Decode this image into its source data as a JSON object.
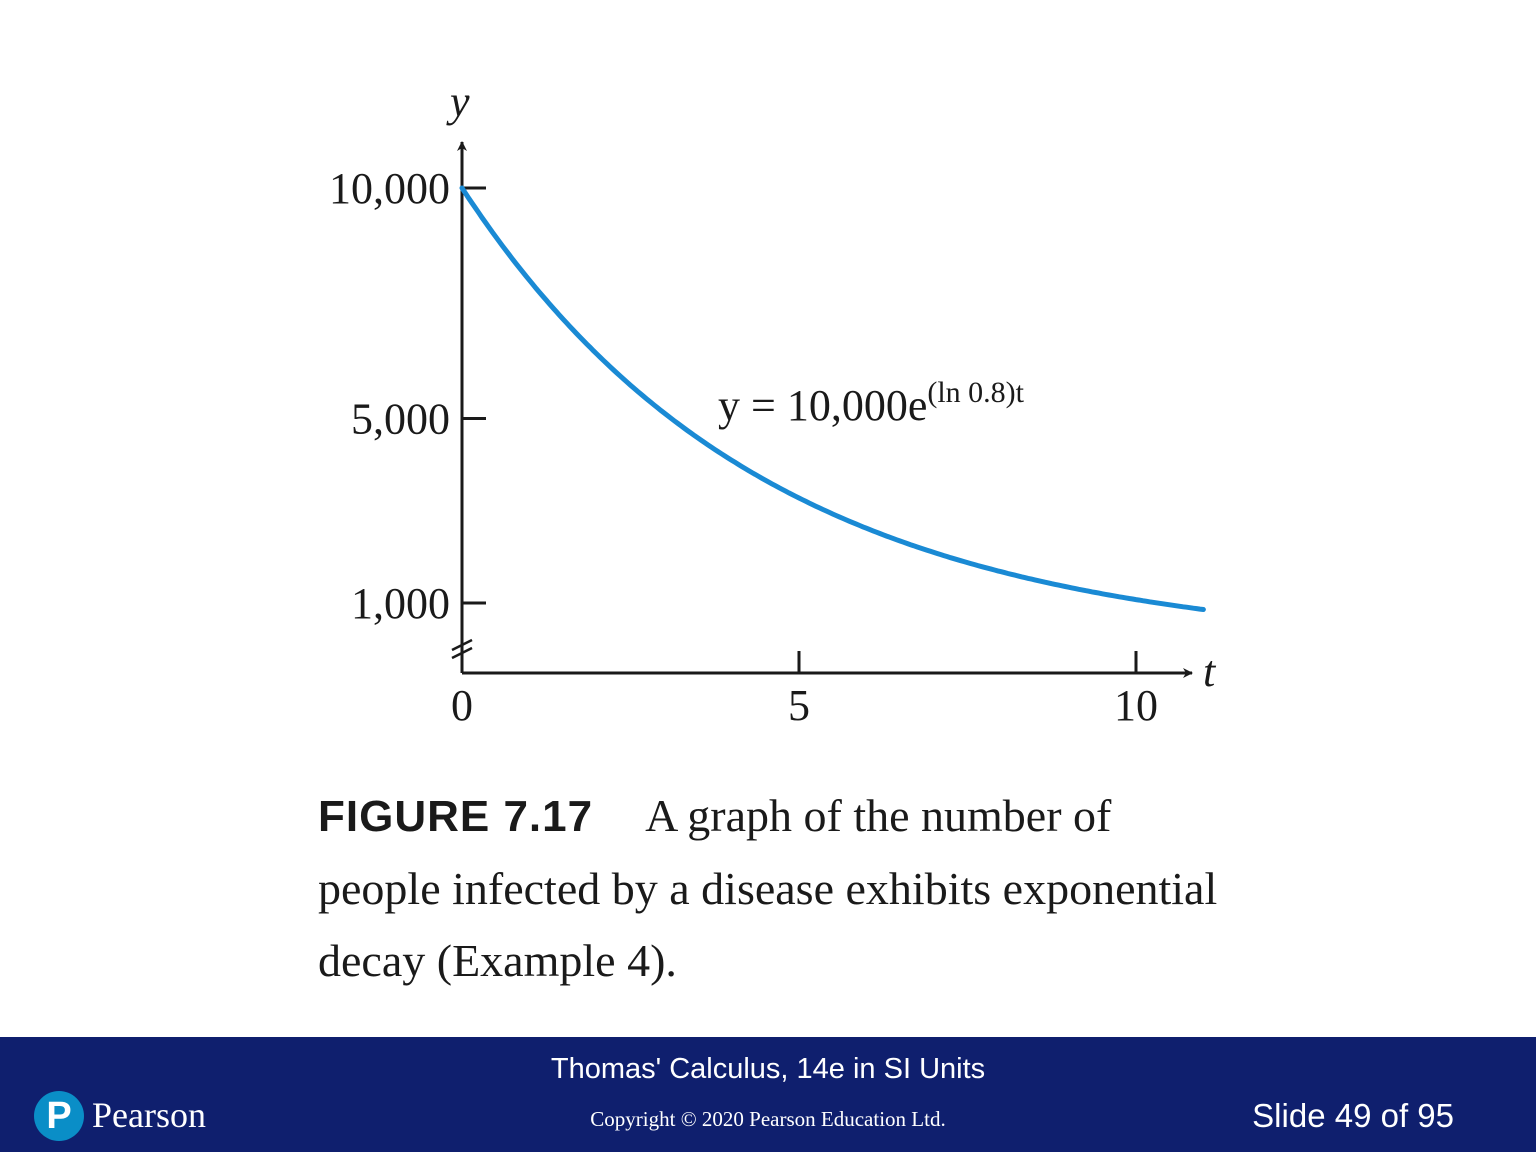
{
  "chart_data": {
    "type": "line",
    "xlabel": "t",
    "ylabel": "y",
    "x_ticks": [
      "0",
      "5",
      "10"
    ],
    "x_tick_values": [
      0,
      5,
      10
    ],
    "y_ticks": [
      "1,000",
      "5,000",
      "10,000"
    ],
    "y_tick_values": [
      1000,
      5000,
      10000
    ],
    "xlim": [
      0,
      11
    ],
    "y_axis_break_below": 1000,
    "equation": {
      "main": "y = 10,000e",
      "superscript": "(ln 0.8)t"
    },
    "series": [
      {
        "color": "#1a8ad4",
        "function": "y = 10000 * exp(ln(0.8) * t)",
        "x": [
          0,
          1,
          2,
          3,
          4,
          5,
          6,
          7,
          8,
          9,
          10,
          11
        ],
        "y": [
          10000,
          8000,
          6400,
          5120,
          4096,
          3277,
          2621,
          2097,
          1678,
          1342,
          1074,
          859
        ]
      }
    ]
  },
  "caption": {
    "figure_label": "FIGURE 7.17",
    "text": "A graph of the number of people infected by a disease exhibits exponential decay (Example 4)."
  },
  "footer": {
    "book_title": "Thomas' Calculus, 14e in SI Units",
    "copyright": "Copyright © 2020 Pearson Education Ltd.",
    "slide_counter": "Slide 49 of 95",
    "logo_mark": "P",
    "logo_text": "Pearson"
  }
}
